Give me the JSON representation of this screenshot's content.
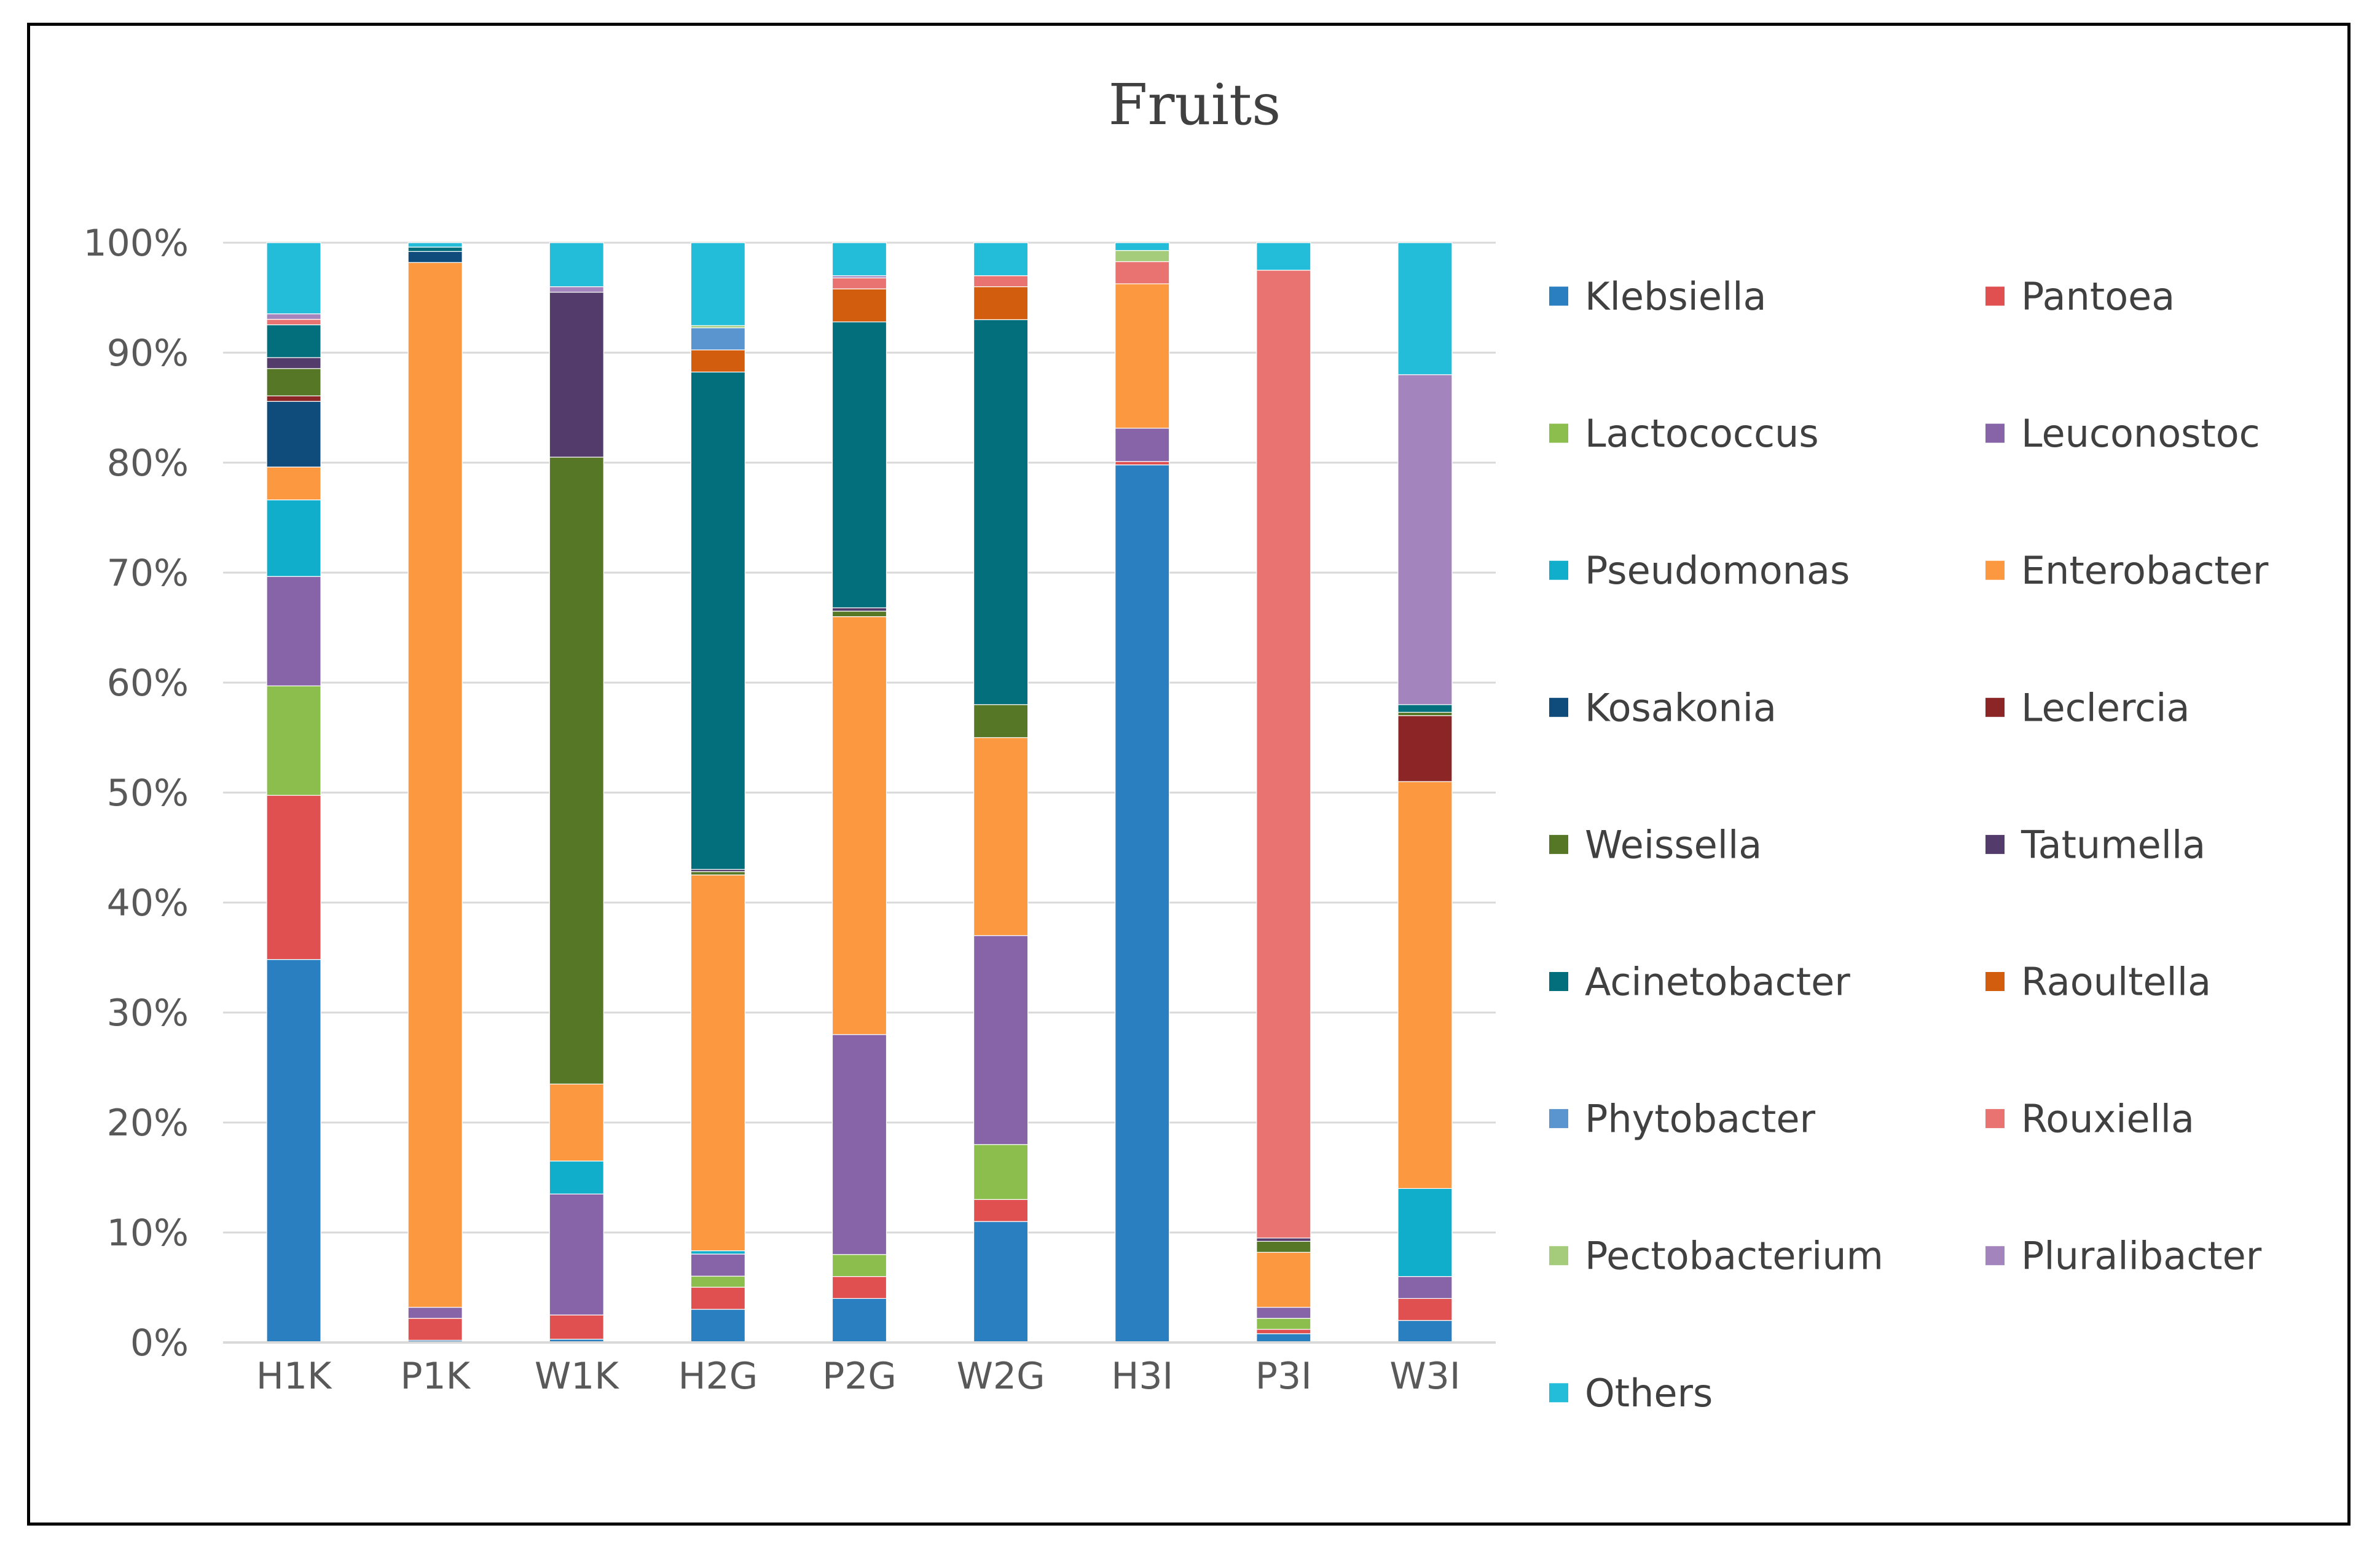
{
  "chart_data": {
    "type": "bar",
    "stacked": true,
    "percent_stacked": true,
    "title": "Fruits",
    "xlabel": "",
    "ylabel": "",
    "ylim": [
      0,
      100
    ],
    "y_ticks": [
      "0%",
      "10%",
      "20%",
      "30%",
      "40%",
      "50%",
      "60%",
      "70%",
      "80%",
      "90%",
      "100%"
    ],
    "categories": [
      "H1K",
      "P1K",
      "W1K",
      "H2G",
      "P2G",
      "W2G",
      "H3I",
      "P3I",
      "W3I"
    ],
    "gridlines": true,
    "legend_position": "right",
    "series": [
      {
        "name": "Klebsiella",
        "color": "#2A7FC1",
        "values": [
          35,
          0.2,
          0.3,
          3,
          4,
          11,
          79,
          0.8,
          2
        ]
      },
      {
        "name": "Pantoea",
        "color": "#E05050",
        "values": [
          15,
          2,
          2.2,
          2,
          2,
          2,
          0.3,
          0.4,
          2
        ]
      },
      {
        "name": "Lactococcus",
        "color": "#8BBE4C",
        "values": [
          10,
          0,
          0,
          1,
          2,
          5,
          0,
          1,
          0
        ]
      },
      {
        "name": "Leuconostoc",
        "color": "#8763A8",
        "values": [
          10,
          1,
          11,
          2,
          20,
          19,
          3,
          1,
          2
        ]
      },
      {
        "name": "Pseudomonas",
        "color": "#11AECB",
        "values": [
          7,
          0,
          3,
          0.3,
          0,
          0,
          0,
          0,
          8
        ]
      },
      {
        "name": "Enterobacter",
        "color": "#FB9840",
        "values": [
          3,
          95,
          7,
          34,
          38,
          18,
          13,
          5,
          37
        ]
      },
      {
        "name": "Kosakonia",
        "color": "#0F4C7C",
        "values": [
          6,
          1,
          0,
          0,
          0,
          0,
          0,
          0,
          0
        ]
      },
      {
        "name": "Leclercia",
        "color": "#8B2526",
        "values": [
          0.5,
          0,
          0,
          0,
          0,
          0,
          0,
          0,
          6
        ]
      },
      {
        "name": "Weissella",
        "color": "#567726",
        "values": [
          2.5,
          0,
          57,
          0.3,
          0.5,
          3,
          0,
          1,
          0.3
        ]
      },
      {
        "name": "Tatumella",
        "color": "#533C6B",
        "values": [
          1,
          0,
          15,
          0.2,
          0.3,
          0,
          0,
          0.3,
          0
        ]
      },
      {
        "name": "Acinetobacter",
        "color": "#036F7D",
        "values": [
          3,
          0.4,
          0,
          45,
          26,
          35,
          0,
          0,
          0.7
        ]
      },
      {
        "name": "Raoultella",
        "color": "#D35D0F",
        "values": [
          0,
          0,
          0,
          2,
          3,
          3,
          0,
          0,
          0
        ]
      },
      {
        "name": "Phytobacter",
        "color": "#5A95CF",
        "values": [
          0,
          0,
          0,
          2,
          0,
          0,
          0,
          0,
          0
        ]
      },
      {
        "name": "Rouxiella",
        "color": "#E87370",
        "values": [
          0.5,
          0,
          0,
          0,
          1,
          1,
          2,
          88,
          0
        ]
      },
      {
        "name": "Pectobacterium",
        "color": "#A5CC7A",
        "values": [
          0,
          0,
          0,
          0.2,
          0,
          0,
          1,
          0,
          0
        ]
      },
      {
        "name": "Pluralibacter",
        "color": "#A384BC",
        "values": [
          0.5,
          0,
          0.5,
          0,
          0.2,
          0,
          0,
          0,
          30
        ]
      },
      {
        "name": "Others",
        "color": "#23BDD9",
        "values": [
          6.5,
          0.4,
          4,
          7.5,
          3,
          3,
          0.7,
          2.5,
          12
        ]
      }
    ]
  }
}
